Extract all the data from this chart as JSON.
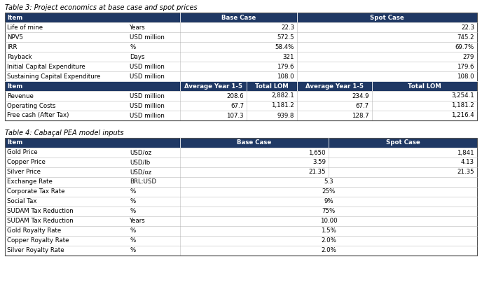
{
  "table3_title": "Table 3: Project economics at base case and spot prices",
  "table4_title": "Table 4: Cabaçal PEA model inputs",
  "header_color": "#1F3864",
  "header_text_color": "#FFFFFF",
  "row_text_color": "#000000",
  "bg_color": "#FFFFFF",
  "t3_rows_simple": [
    [
      "Life of mine",
      "Years",
      "22.3",
      "22.3"
    ],
    [
      "NPV5",
      "USD million",
      "572.5",
      "745.2"
    ],
    [
      "IRR",
      "%",
      "58.4%",
      "69.7%"
    ],
    [
      "Payback",
      "Days",
      "321",
      "279"
    ],
    [
      "Initial Capital Expenditure",
      "USD million",
      "179.6",
      "179.6"
    ],
    [
      "Sustaining Capital Expenditure",
      "USD million",
      "108.0",
      "108.0"
    ]
  ],
  "t3_rows_detailed": [
    [
      "Revenue",
      "USD million",
      "208.6",
      "2,882.1",
      "234.9",
      "3,254.1"
    ],
    [
      "Operating Costs",
      "USD million",
      "67.7",
      "1,181.2",
      "67.7",
      "1,181.2"
    ],
    [
      "Free cash (After Tax)",
      "USD million",
      "107.3",
      "939.8",
      "128.7",
      "1,216.4"
    ]
  ],
  "t4_rows_dual": [
    [
      "Gold Price",
      "USD/oz",
      "1,650",
      "1,841"
    ],
    [
      "Copper Price",
      "USD/lb",
      "3.59",
      "4.13"
    ],
    [
      "Silver Price",
      "USD/oz",
      "21.35",
      "21.35"
    ]
  ],
  "t4_rows_single": [
    [
      "Exchange Rate",
      "BRL:USD",
      "5.3"
    ],
    [
      "Corporate Tax Rate",
      "%",
      "25%"
    ],
    [
      "Social Tax",
      "%",
      "9%"
    ],
    [
      "SUDAM Tax Reduction",
      "%",
      "75%"
    ],
    [
      "SUDAM Tax Reduction",
      "Years",
      "10.00"
    ],
    [
      "Gold Royalty Rate",
      "%",
      "1.5%"
    ],
    [
      "Copper Royalty Rate",
      "%",
      "2.0%"
    ],
    [
      "Silver Royalty Rate",
      "%",
      "2.0%"
    ]
  ]
}
